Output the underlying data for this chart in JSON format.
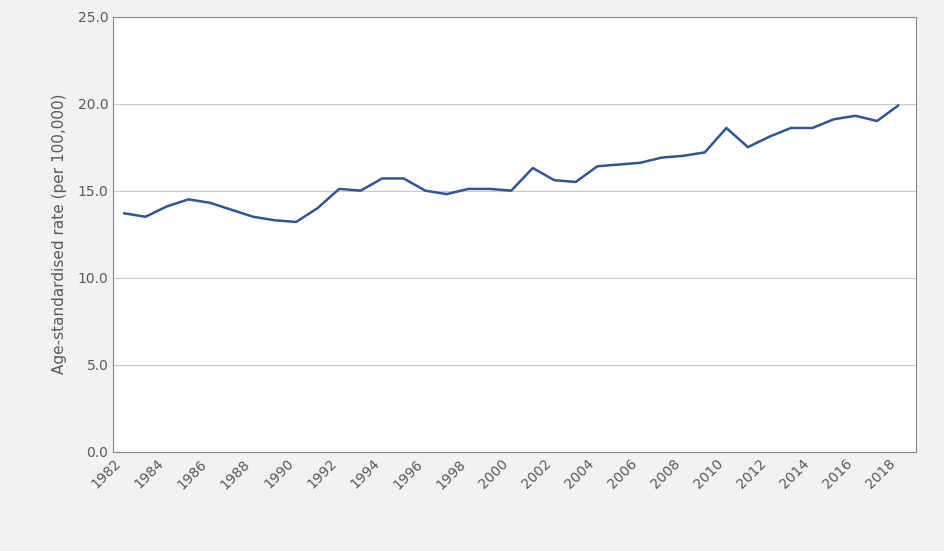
{
  "years": [
    1982,
    1983,
    1984,
    1985,
    1986,
    1987,
    1988,
    1989,
    1990,
    1991,
    1992,
    1993,
    1994,
    1995,
    1996,
    1997,
    1998,
    1999,
    2000,
    2001,
    2002,
    2003,
    2004,
    2005,
    2006,
    2007,
    2008,
    2009,
    2010,
    2011,
    2012,
    2013,
    2014,
    2015,
    2016,
    2017,
    2018
  ],
  "values": [
    13.7,
    13.5,
    14.1,
    14.5,
    14.3,
    13.9,
    13.5,
    13.3,
    13.2,
    14.0,
    15.1,
    15.0,
    15.7,
    15.7,
    15.0,
    14.8,
    15.1,
    15.1,
    15.0,
    16.3,
    15.6,
    15.5,
    16.4,
    16.5,
    16.6,
    16.9,
    17.0,
    17.2,
    18.6,
    17.5,
    18.1,
    18.6,
    18.6,
    19.1,
    19.3,
    19.0,
    19.9
  ],
  "line_color": "#2F5597",
  "ylabel": "Age-standardised rate (per 100,000)",
  "ylim": [
    0,
    25
  ],
  "yticks": [
    0.0,
    5.0,
    10.0,
    15.0,
    20.0,
    25.0
  ],
  "xtick_years": [
    1982,
    1984,
    1986,
    1988,
    1990,
    1992,
    1994,
    1996,
    1998,
    2000,
    2002,
    2004,
    2006,
    2008,
    2010,
    2012,
    2014,
    2016,
    2018
  ],
  "background_color": "#ffffff",
  "grid_color": "#c8c8c8",
  "line_width": 1.8,
  "border_color": "#888888",
  "tick_label_color": "#595959",
  "ylabel_color": "#595959",
  "fig_bg": "#f2f2f2"
}
